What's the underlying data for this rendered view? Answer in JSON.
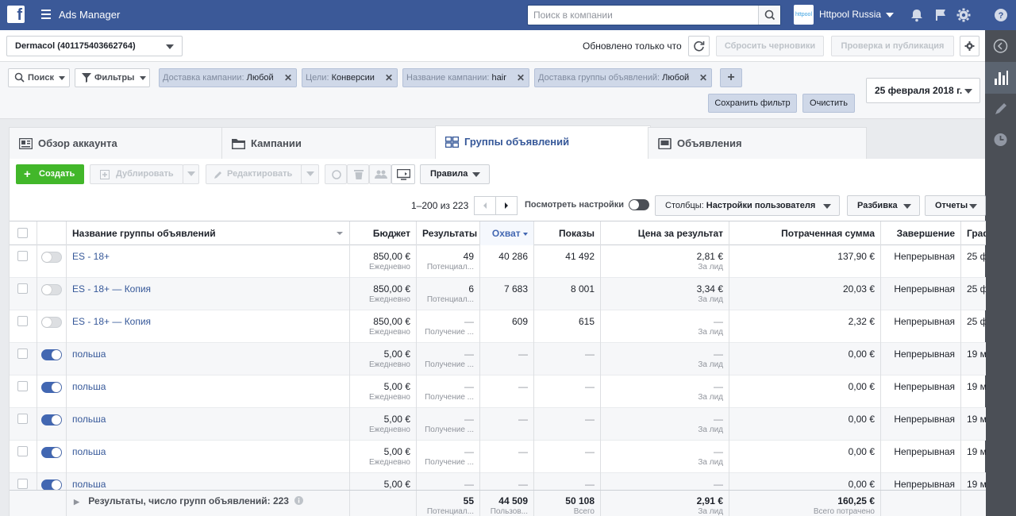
{
  "app": {
    "title": "Ads Manager",
    "logo_letter": "f",
    "search_placeholder": "Поиск в компании",
    "account_name": "Httpool Russia",
    "account_avatar_text": "httpool"
  },
  "subheader": {
    "account_select": "Dermacol (401175403662764)",
    "updated_text": "Обновлено только что",
    "reset_drafts": "Сбросить черновики",
    "review_publish": "Проверка и публикация"
  },
  "filters": {
    "search_label": "Поиск",
    "filters_label": "Фильтры",
    "pills": [
      {
        "label": "Доставка кампании:",
        "value": "Любой"
      },
      {
        "label": "Цели:",
        "value": "Конверсии"
      },
      {
        "label": "Название кампании:",
        "value": "hair"
      },
      {
        "label": "Доставка группы объявлений:",
        "value": "Любой"
      }
    ],
    "add_label": "+",
    "date": "25 февраля 2018 г.",
    "save_filter": "Сохранить фильтр",
    "clear": "Очистить"
  },
  "tabs": [
    {
      "label": "Обзор аккаунта",
      "icon": "account-overview-icon"
    },
    {
      "label": "Кампании",
      "icon": "folder-icon"
    },
    {
      "label": "Группы объявлений",
      "icon": "grid-icon"
    },
    {
      "label": "Объявления",
      "icon": "ad-icon"
    }
  ],
  "toolbar": {
    "create": "Создать",
    "duplicate": "Дублировать",
    "edit": "Редактировать",
    "rules": "Правила",
    "pagination": "1–200 из 223",
    "view_settings": "Посмотреть настройки",
    "columns_prefix": "Столбцы:",
    "columns_value": "Настройки пользователя",
    "breakdown": "Разбивка",
    "reports": "Отчеты"
  },
  "table": {
    "headers": {
      "name": "Название группы объявлений",
      "budget": "Бюджет",
      "results": "Результаты",
      "reach": "Охват",
      "impressions": "Показы",
      "cost": "Цена за результат",
      "spent": "Потраченная сумма",
      "end": "Завершение",
      "schedule": "Граф"
    },
    "rows": [
      {
        "on": false,
        "name": "ES - 18+",
        "budget": "850,00 €",
        "budget_sub": "Ежедневно",
        "results": "49",
        "results_sub": "Потенциал...",
        "reach": "40 286",
        "impressions": "41 492",
        "cost": "2,81 €",
        "cost_sub": "За лид",
        "spent": "137,90 €",
        "end": "Непрерывная",
        "schedule": "25 ф"
      },
      {
        "on": false,
        "name": "ES - 18+ — Копия",
        "budget": "850,00 €",
        "budget_sub": "Ежедневно",
        "results": "6",
        "results_sub": "Потенциал...",
        "reach": "7 683",
        "impressions": "8 001",
        "cost": "3,34 €",
        "cost_sub": "За лид",
        "spent": "20,03 €",
        "end": "Непрерывная",
        "schedule": "25 ф"
      },
      {
        "on": false,
        "name": "ES - 18+ — Копия",
        "budget": "850,00 €",
        "budget_sub": "Ежедневно",
        "results": "—",
        "results_sub": "Получение ...",
        "reach": "609",
        "impressions": "615",
        "cost": "—",
        "cost_sub": "За лид",
        "spent": "2,32 €",
        "end": "Непрерывная",
        "schedule": "25 ф"
      },
      {
        "on": true,
        "name": "польша",
        "budget": "5,00 €",
        "budget_sub": "Ежедневно",
        "results": "—",
        "results_sub": "Получение ...",
        "reach": "—",
        "impressions": "—",
        "cost": "—",
        "cost_sub": "За лид",
        "spent": "0,00 €",
        "end": "Непрерывная",
        "schedule": "19 м"
      },
      {
        "on": true,
        "name": "польша",
        "budget": "5,00 €",
        "budget_sub": "Ежедневно",
        "results": "—",
        "results_sub": "Получение ...",
        "reach": "—",
        "impressions": "—",
        "cost": "—",
        "cost_sub": "За лид",
        "spent": "0,00 €",
        "end": "Непрерывная",
        "schedule": "19 м"
      },
      {
        "on": true,
        "name": "польша",
        "budget": "5,00 €",
        "budget_sub": "Ежедневно",
        "results": "—",
        "results_sub": "Получение ...",
        "reach": "—",
        "impressions": "—",
        "cost": "—",
        "cost_sub": "За лид",
        "spent": "0,00 €",
        "end": "Непрерывная",
        "schedule": "19 м"
      },
      {
        "on": true,
        "name": "польша",
        "budget": "5,00 €",
        "budget_sub": "Ежедневно",
        "results": "—",
        "results_sub": "Получение ...",
        "reach": "—",
        "impressions": "—",
        "cost": "—",
        "cost_sub": "За лид",
        "spent": "0,00 €",
        "end": "Непрерывная",
        "schedule": "19 м"
      },
      {
        "on": true,
        "name": "польша",
        "budget": "5,00 €",
        "budget_sub": "",
        "results": "—",
        "results_sub": "",
        "reach": "—",
        "impressions": "—",
        "cost": "—",
        "cost_sub": "",
        "spent": "0,00 €",
        "end": "Непрерывная",
        "schedule": "19 м"
      }
    ],
    "footer": {
      "label": "Результаты, число групп объявлений: 223",
      "results": "55",
      "results_sub": "Потенциал...",
      "reach": "44 509",
      "reach_sub": "Пользов...",
      "impressions": "50 108",
      "impressions_sub": "Всего",
      "cost": "2,91 €",
      "cost_sub": "За лид",
      "spent": "160,25 €",
      "spent_sub": "Всего потрачено"
    }
  },
  "colors": {
    "brand": "#3b5998",
    "link": "#365899",
    "create": "#42b72a",
    "toggle_on": "#4267b2"
  }
}
